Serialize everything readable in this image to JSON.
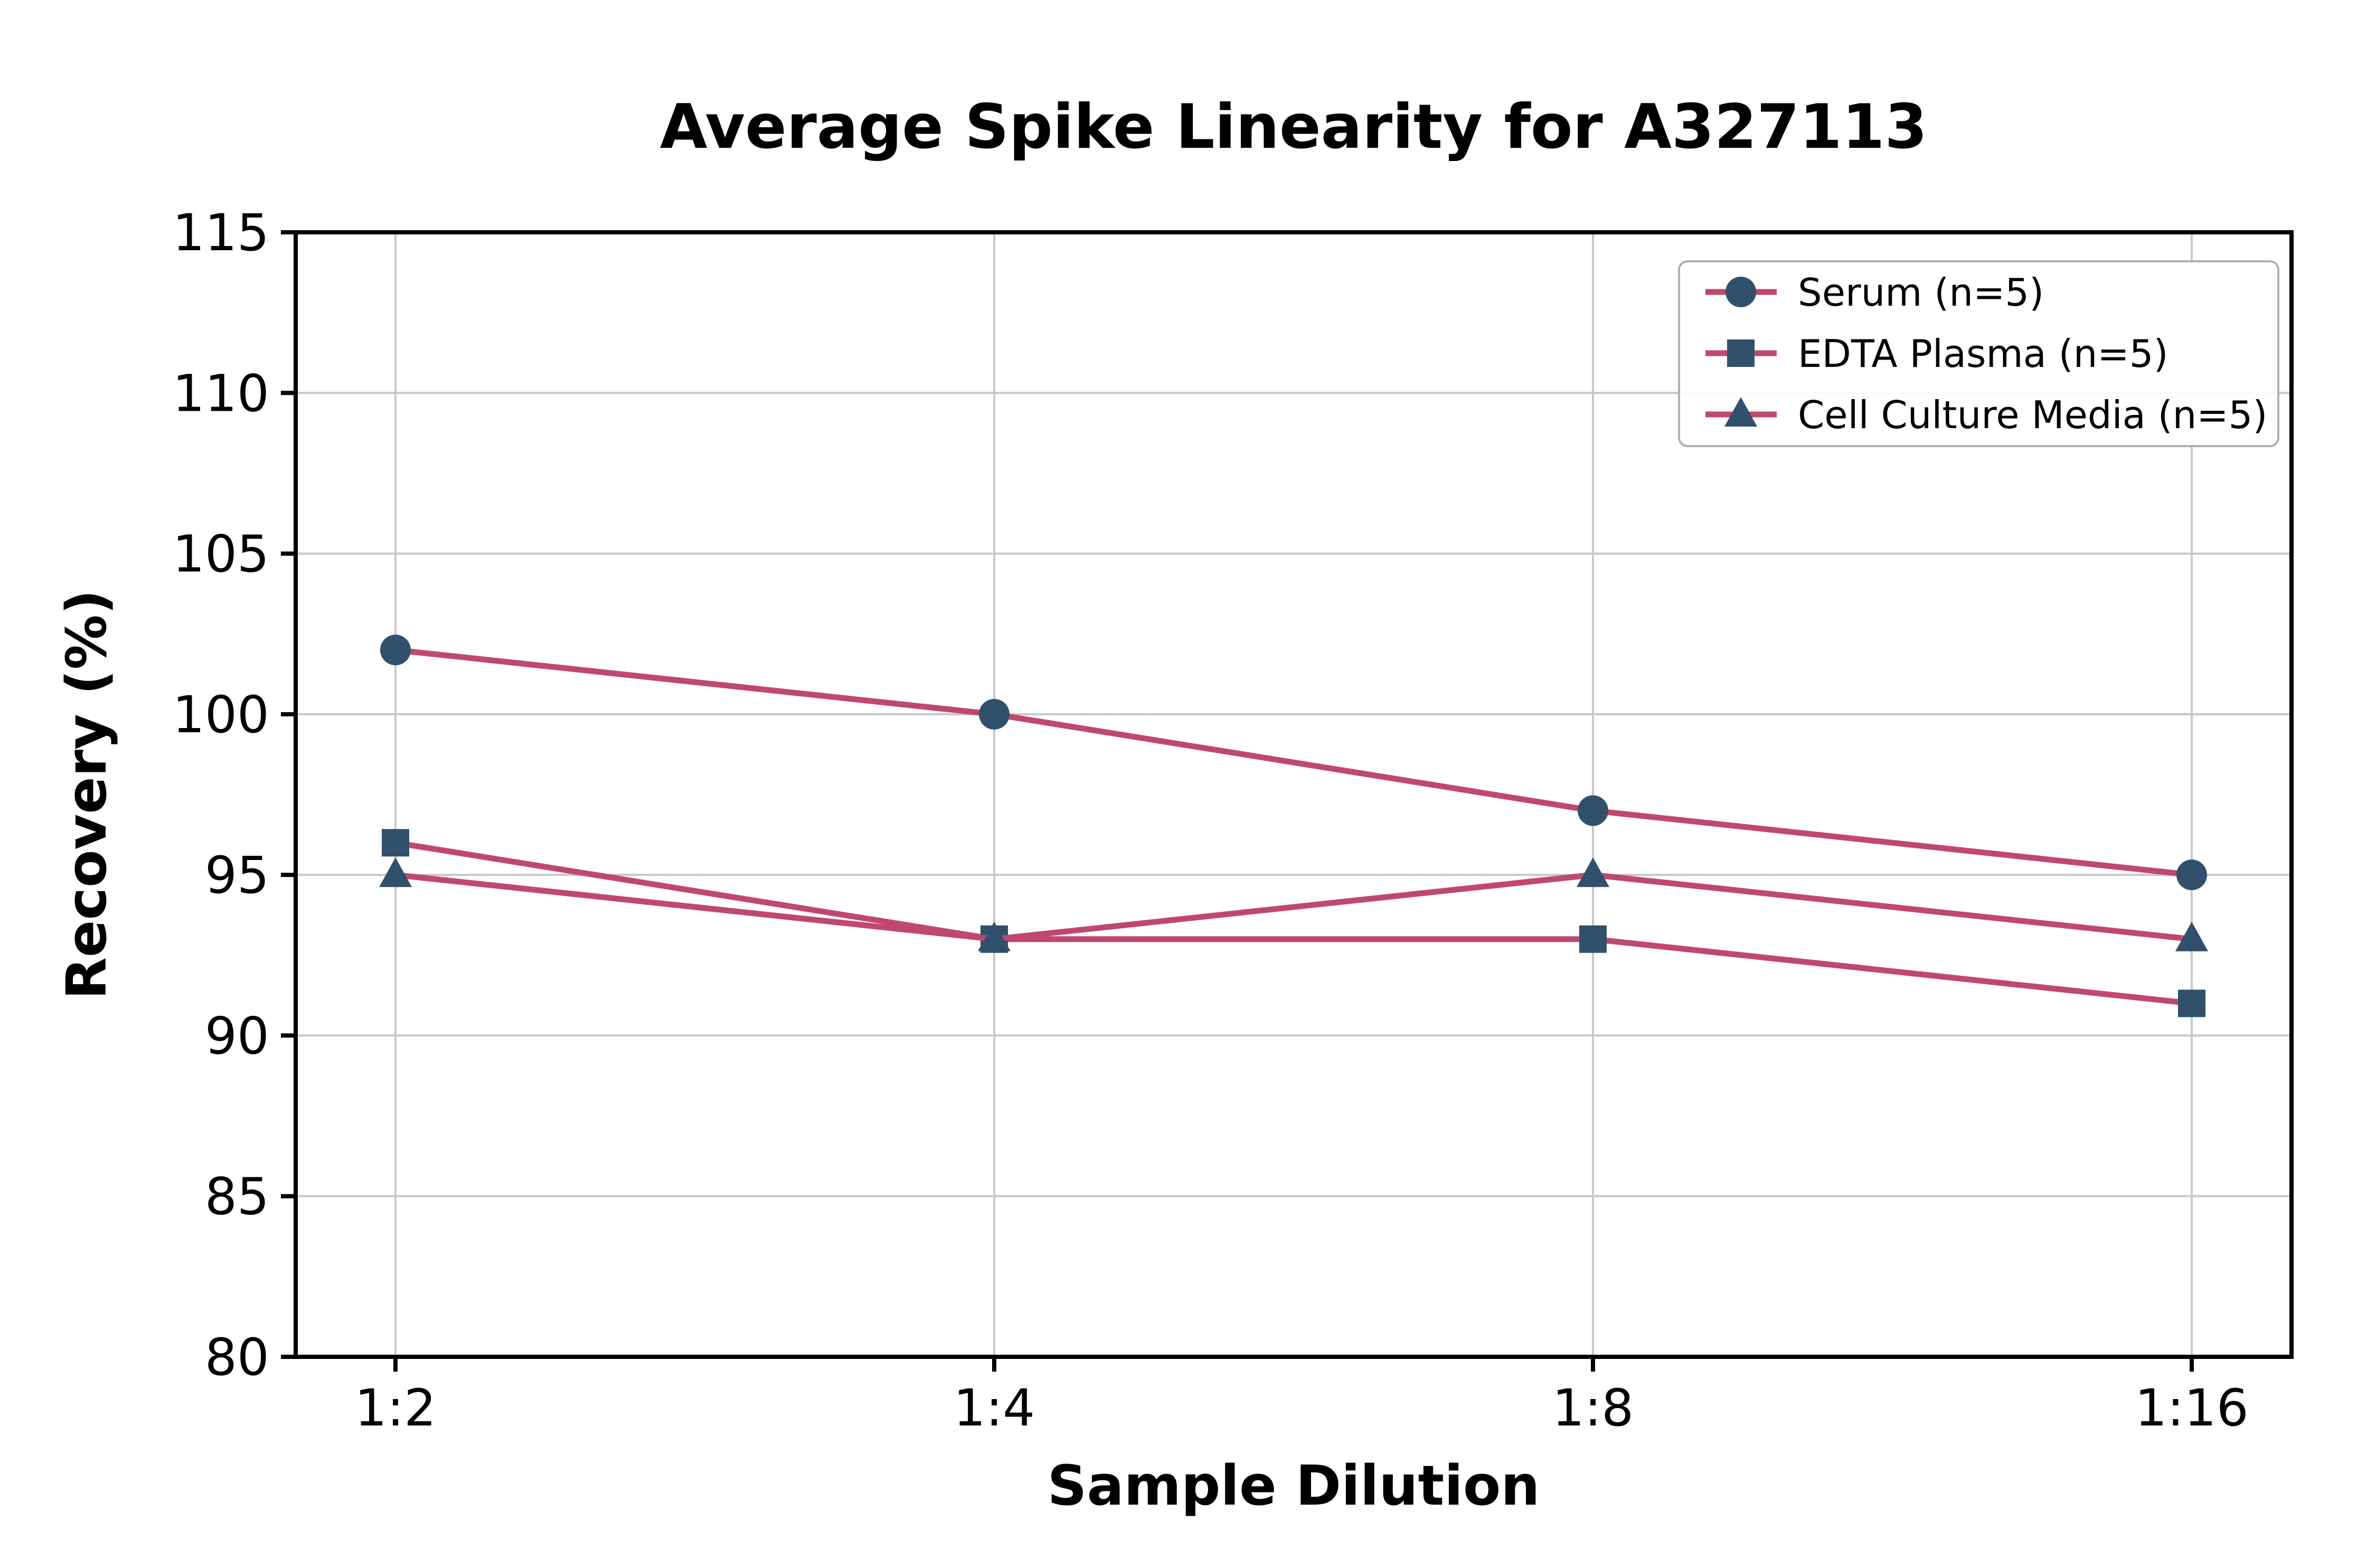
{
  "page": {
    "background": "#ffffff"
  },
  "chart_data": {
    "type": "line",
    "title": "Average Spike Linearity for A327113",
    "xlabel": "Sample Dilution",
    "ylabel": "Recovery (%)",
    "categories": [
      "1:2",
      "1:4",
      "1:8",
      "1:16"
    ],
    "series": [
      {
        "name": "Serum (n=5)",
        "marker": "circle",
        "values": [
          102,
          100,
          97,
          95
        ]
      },
      {
        "name": "EDTA Plasma (n=5)",
        "marker": "square",
        "values": [
          96,
          93,
          93,
          91
        ]
      },
      {
        "name": "Cell Culture Media (n=5)",
        "marker": "triangle",
        "values": [
          95,
          93,
          95,
          93
        ]
      }
    ],
    "ylim": [
      80,
      115
    ],
    "yticks": [
      80,
      85,
      90,
      95,
      100,
      105,
      110,
      115
    ],
    "grid": true,
    "legend_position": "top-right",
    "colors": {
      "line": "#c0486e",
      "marker": "#31506b",
      "grid": "#c8c8c8",
      "axis": "#000000",
      "legend_border": "#b0b0b0",
      "legend_fill": "#ffffff",
      "text": "#000000"
    }
  }
}
